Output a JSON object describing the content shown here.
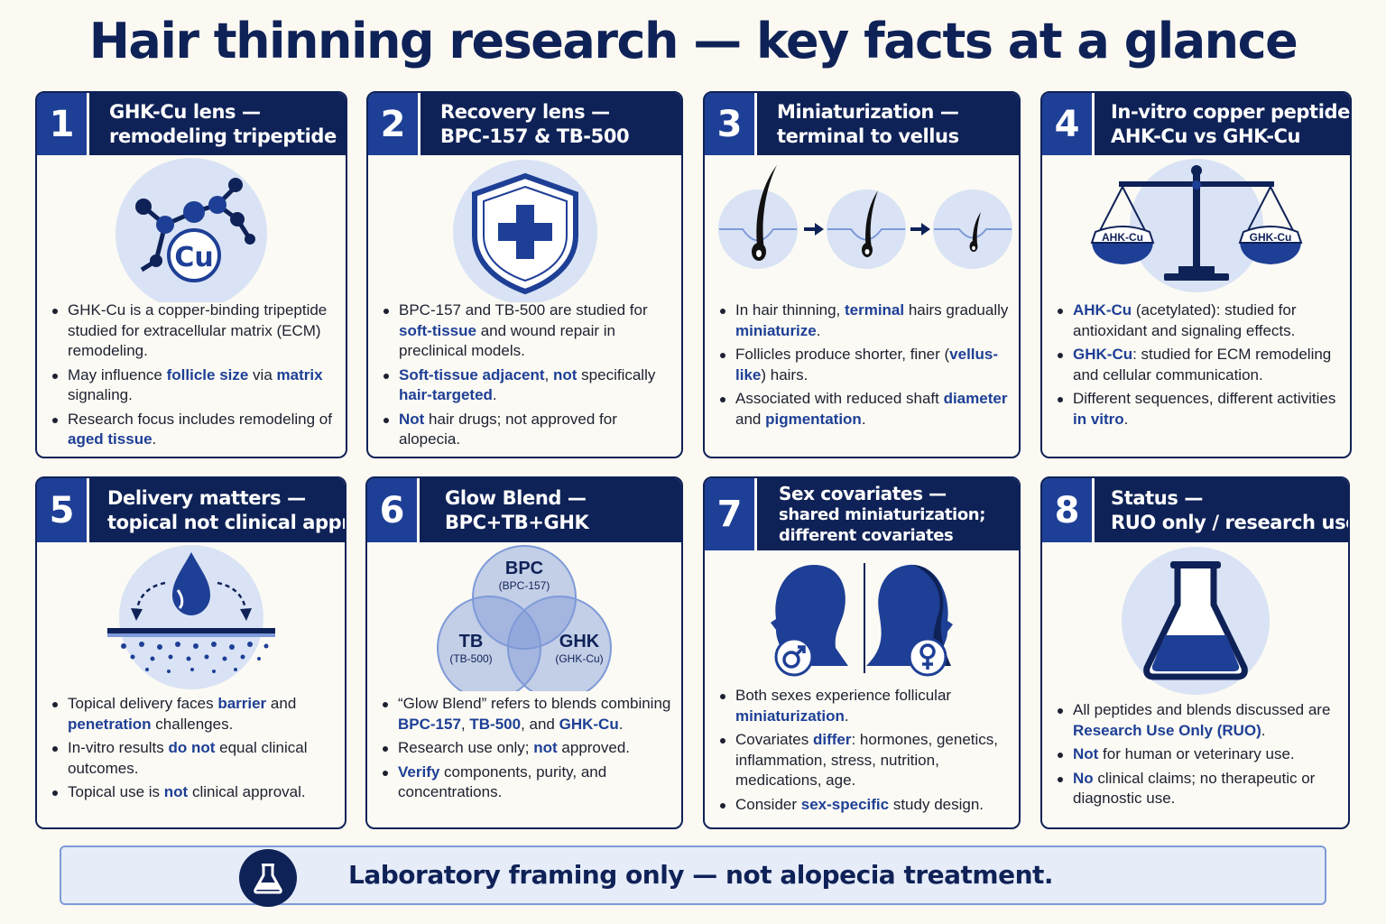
{
  "title": "Hair thinning research — key facts at a glance",
  "colors": {
    "navy": "#0f2257",
    "accent_blue": "#1e3f96",
    "light_blue": "#dbe5f6",
    "background": "#fbf9f2"
  },
  "cards": [
    {
      "num": "1",
      "head_l1": "GHK-Cu lens —",
      "head_l2": "remodeling tripeptide",
      "icon": "molecule-icon",
      "cu_label": "Cu",
      "bullets": [
        [
          "GHK-Cu is a copper-binding tripeptide studied for extracellular matrix (ECM) remodeling."
        ],
        [
          "May influence ",
          "follicle size",
          " via ",
          "matrix",
          " signaling."
        ],
        [
          "Research focus includes remodeling of ",
          "aged tissue",
          "."
        ]
      ]
    },
    {
      "num": "2",
      "head_l1": "Recovery lens —",
      "head_l2": "BPC-157 & TB-500",
      "icon": "shield-cross-icon",
      "bullets": [
        [
          "BPC-157 and TB-500 are studied for ",
          "soft-tissue",
          " and wound repair in preclinical models."
        ],
        [
          "",
          "Soft-tissue adjacent",
          ", ",
          "not",
          " specifically ",
          "hair-targeted",
          "."
        ],
        [
          "",
          "Not",
          " hair drugs; not approved for alopecia."
        ]
      ]
    },
    {
      "num": "3",
      "head_l1": "Miniaturization —",
      "head_l2": "terminal to vellus",
      "icon": "hair-follicle-progression-icon",
      "bullets": [
        [
          "In hair thinning, ",
          "terminal",
          " hairs gradually ",
          "miniaturize",
          "."
        ],
        [
          "Follicles produce shorter, finer (",
          "vellus-like",
          ") hairs."
        ],
        [
          "Associated with reduced shaft ",
          "diameter",
          " and ",
          "pigmentation",
          "."
        ]
      ]
    },
    {
      "num": "4",
      "head_l1": "In-vitro copper peptides —",
      "head_l2": "AHK-Cu vs GHK-Cu",
      "icon": "balance-scale-icon",
      "scale_left": "AHK-Cu",
      "scale_right": "GHK-Cu",
      "bullets": [
        [
          "",
          "AHK-Cu",
          " (acetylated): studied for antioxidant and signaling effects."
        ],
        [
          "",
          "GHK-Cu",
          ": studied for ECM remodeling and cellular communication."
        ],
        [
          "Different sequences, different activities ",
          "in vitro",
          "."
        ]
      ]
    },
    {
      "num": "5",
      "head_l1": "Delivery matters —",
      "head_l2": "topical not clinical approval",
      "icon": "skin-droplet-icon",
      "bullets": [
        [
          "Topical delivery faces ",
          "barrier",
          " and ",
          "penetration",
          " challenges."
        ],
        [
          "In-vitro results ",
          "do not",
          " equal clinical outcomes."
        ],
        [
          "Topical use is ",
          "not",
          " clinical approval."
        ]
      ]
    },
    {
      "num": "6",
      "head_l1": "Glow Blend —",
      "head_l2": "BPC+TB+GHK",
      "icon": "venn-diagram-icon",
      "venn": {
        "a": "BPC",
        "a_sub": "(BPC-157)",
        "b": "TB",
        "b_sub": "(TB-500)",
        "c": "GHK",
        "c_sub": "(GHK-Cu)"
      },
      "bullets": [
        [
          "“Glow Blend” refers to blends combining ",
          "BPC-157",
          ", ",
          "TB-500",
          ", and ",
          "GHK-Cu",
          "."
        ],
        [
          "Research use only; ",
          "not",
          " approved."
        ],
        [
          "",
          "Verify",
          " components, purity, and concentrations."
        ]
      ]
    },
    {
      "num": "7",
      "head_l1": "Sex covariates —",
      "head_l2": "shared miniaturization;",
      "head_l3": "different covariates",
      "icon": "male-female-profile-icon",
      "bullets": [
        [
          "Both sexes experience follicular ",
          "miniaturization",
          "."
        ],
        [
          "Covariates ",
          "differ",
          ": hormones, genetics, inflammation, stress, nutrition, medications, age."
        ],
        [
          "Consider ",
          "sex-specific",
          " study design."
        ]
      ]
    },
    {
      "num": "8",
      "head_l1": "Status —",
      "head_l2": "RUO only / research use only",
      "icon": "flask-icon",
      "bullets": [
        [
          "All peptides and blends discussed are ",
          "Research Use Only (RUO)",
          "."
        ],
        [
          "",
          "Not",
          " for human or veterinary use."
        ],
        [
          "",
          "No",
          " clinical claims; no therapeutic or diagnostic use."
        ]
      ]
    }
  ],
  "footer": {
    "icon": "flask-icon",
    "text": "Laboratory framing only — not alopecia treatment."
  }
}
